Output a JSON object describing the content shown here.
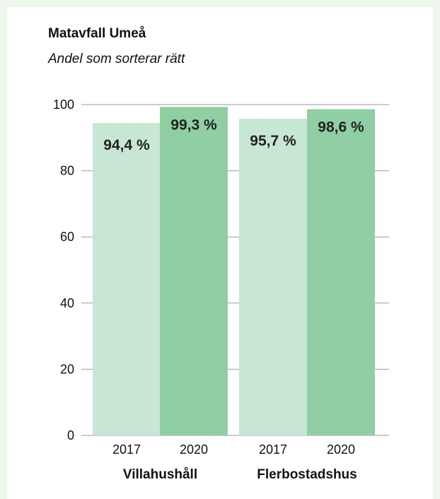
{
  "chart_data": {
    "type": "bar",
    "title": "Matavfall Umeå",
    "subtitle": "Andel som sorterar rätt",
    "ylim": [
      0,
      100
    ],
    "yticks": [
      "0",
      "20",
      "40",
      "60",
      "80",
      "100"
    ],
    "grid": true,
    "groups": [
      {
        "label": "Villahushåll",
        "bars": [
          {
            "category": "2017",
            "value": 94.4,
            "label": "94,4 %",
            "color": "#c8e6d4"
          },
          {
            "category": "2020",
            "value": 99.3,
            "label": "99,3 %",
            "color": "#8fcfa3"
          }
        ]
      },
      {
        "label": "Flerbostadshus",
        "bars": [
          {
            "category": "2017",
            "value": 95.7,
            "label": "95,7 %",
            "color": "#c8e6d4"
          },
          {
            "category": "2020",
            "value": 98.6,
            "label": "98,6 %",
            "color": "#8fcfa3"
          }
        ]
      }
    ],
    "colors": {
      "background": "#eef6ee",
      "gridline": "#9a9a9a",
      "bar_2017": "#c8e6d4",
      "bar_2020": "#8fcfa3"
    }
  }
}
